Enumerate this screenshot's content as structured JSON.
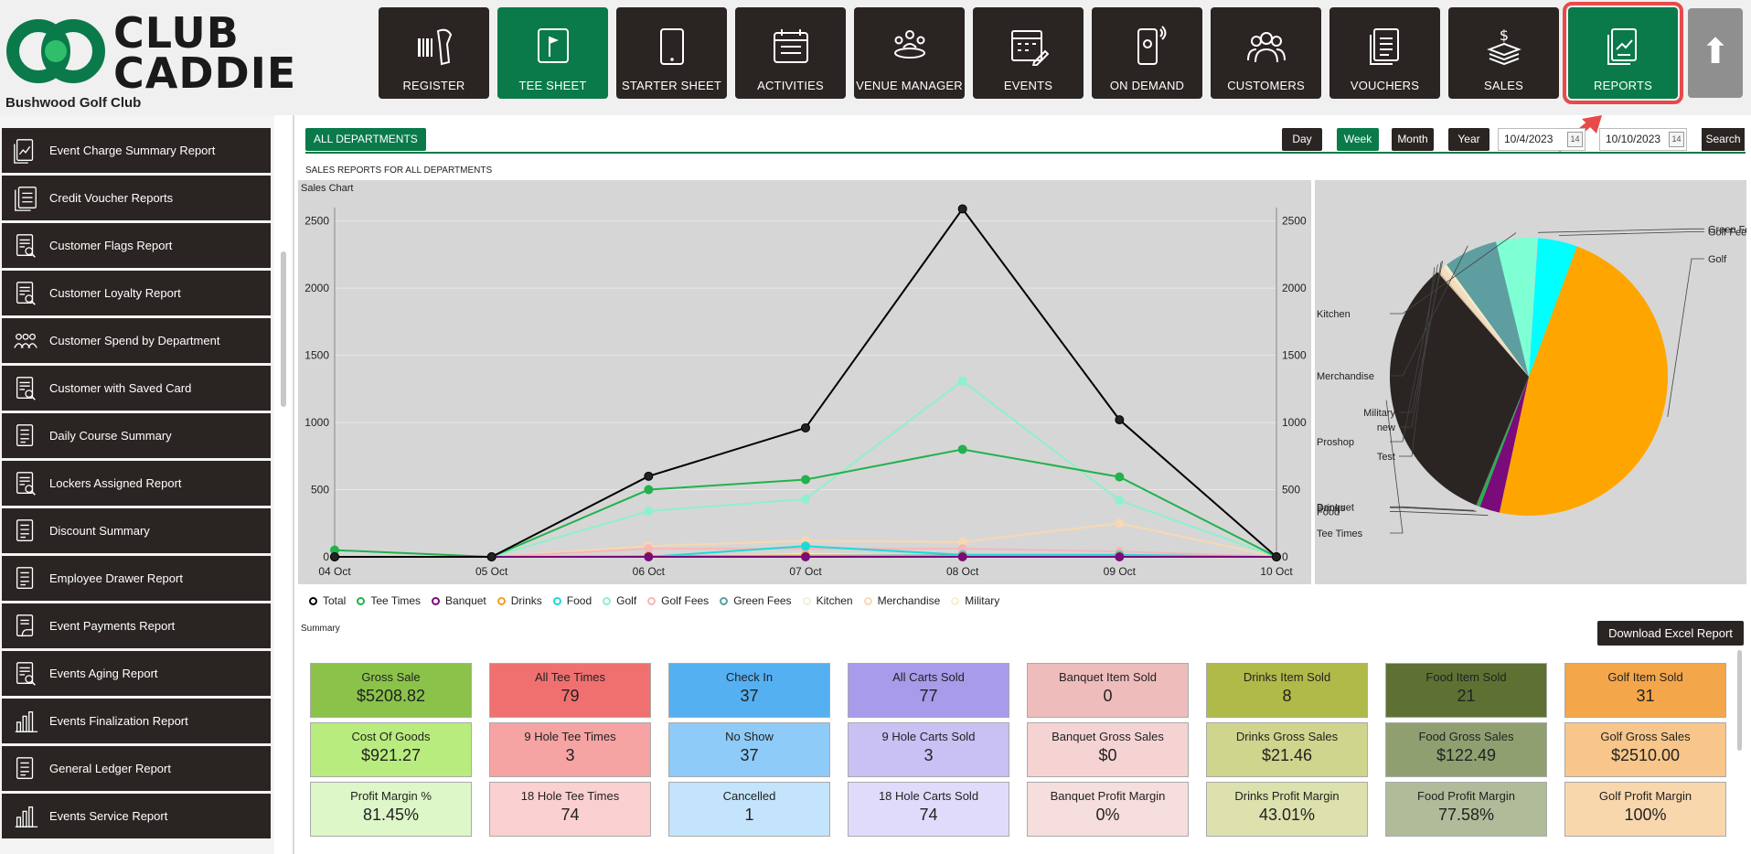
{
  "header": {
    "logo_line1": "CLUB",
    "logo_line2": "CADDIE",
    "club_name": "Bushwood Golf Club",
    "nav": [
      {
        "label": "REGISTER",
        "icon": "scanner-icon"
      },
      {
        "label": "TEE SHEET",
        "icon": "flag-icon"
      },
      {
        "label": "STARTER SHEET",
        "icon": "tablet-icon"
      },
      {
        "label": "ACTIVITIES",
        "icon": "calendar-list-icon"
      },
      {
        "label": "VENUE MANAGER",
        "icon": "meeting-icon"
      },
      {
        "label": "EVENTS",
        "icon": "calendar-edit-icon"
      },
      {
        "label": "ON DEMAND",
        "icon": "phone-icon"
      },
      {
        "label": "CUSTOMERS",
        "icon": "users-icon"
      },
      {
        "label": "VOUCHERS",
        "icon": "document-icon"
      },
      {
        "label": "SALES",
        "icon": "money-icon"
      },
      {
        "label": "REPORTS",
        "icon": "report-icon"
      }
    ],
    "active_nav": "TEE SHEET",
    "highlighted_nav": "REPORTS",
    "up_icon": "arrow-up-icon"
  },
  "sidebar": {
    "items": [
      {
        "label": "Event Charge Summary Report",
        "icon": "chart-doc-icon"
      },
      {
        "label": "Credit Voucher Reports",
        "icon": "doc-stack-icon"
      },
      {
        "label": "Customer Flags Report",
        "icon": "doc-search-icon"
      },
      {
        "label": "Customer Loyalty Report",
        "icon": "doc-search-icon"
      },
      {
        "label": "Customer Spend by Department",
        "icon": "people-icon"
      },
      {
        "label": "Customer with Saved Card",
        "icon": "doc-search-icon"
      },
      {
        "label": "Daily Course Summary",
        "icon": "doc-lines-icon"
      },
      {
        "label": "Lockers Assigned Report",
        "icon": "doc-search-icon"
      },
      {
        "label": "Discount Summary",
        "icon": "doc-lines-icon"
      },
      {
        "label": "Employee Drawer Report",
        "icon": "doc-lines-icon"
      },
      {
        "label": "Event Payments Report",
        "icon": "doc-hand-icon"
      },
      {
        "label": "Events Aging Report",
        "icon": "doc-search-icon"
      },
      {
        "label": "Events Finalization Report",
        "icon": "bar-chart-icon"
      },
      {
        "label": "General Ledger Report",
        "icon": "doc-lines-icon"
      },
      {
        "label": "Events Service Report",
        "icon": "bar-chart-icon"
      }
    ]
  },
  "toolbar": {
    "department_button": "ALL DEPARTMENTS",
    "ranges": [
      "Day",
      "Week",
      "Month",
      "Year"
    ],
    "active_range": "Week",
    "start_date": "10/4/2023",
    "end_date": "10/10/2023",
    "calendar_icon_text": "14",
    "search_label": "Search"
  },
  "report_title": "SALES REPORTS FOR ALL DEPARTMENTS",
  "chart_label": "Sales Chart",
  "colors": {
    "brand_green": "#0a7a4a",
    "dark": "#2a2522",
    "highlight_red": "#e84a4a",
    "chart_bg": "#d6d6d6"
  },
  "chart_data": [
    {
      "type": "line",
      "title": "Sales Chart",
      "x": [
        "04 Oct",
        "05 Oct",
        "06 Oct",
        "07 Oct",
        "08 Oct",
        "09 Oct",
        "10 Oct"
      ],
      "ylim": [
        0,
        2600
      ],
      "yticks": [
        0,
        500,
        1000,
        1500,
        2000,
        2500
      ],
      "series": [
        {
          "name": "Total",
          "color": "#000000",
          "values": [
            0,
            0,
            600,
            960,
            2590,
            1020,
            0
          ]
        },
        {
          "name": "Tee Times",
          "color": "#22b14c",
          "values": [
            50,
            0,
            500,
            575,
            800,
            595,
            0
          ]
        },
        {
          "name": "Banquet",
          "color": "#7b0a7b",
          "values": [
            0,
            0,
            0,
            0,
            0,
            0,
            0
          ]
        },
        {
          "name": "Drinks",
          "color": "#f0a020",
          "values": [
            0,
            0,
            5,
            10,
            5,
            5,
            0
          ]
        },
        {
          "name": "Food",
          "color": "#20d8d8",
          "values": [
            0,
            0,
            0,
            80,
            15,
            15,
            0
          ]
        },
        {
          "name": "Golf",
          "color": "#8ef0cc",
          "values": [
            0,
            0,
            340,
            430,
            1310,
            420,
            0
          ]
        },
        {
          "name": "Golf Fees",
          "color": "#f4b8b8",
          "values": [
            0,
            0,
            60,
            60,
            60,
            40,
            0
          ]
        },
        {
          "name": "Green Fees",
          "color": "#5aa0a0",
          "values": [
            0,
            0,
            0,
            10,
            10,
            0,
            0
          ]
        },
        {
          "name": "Kitchen",
          "color": "#f0f0d8",
          "values": [
            0,
            0,
            0,
            20,
            10,
            5,
            0
          ]
        },
        {
          "name": "Merchandise",
          "color": "#f8d8b0",
          "values": [
            0,
            0,
            80,
            120,
            110,
            250,
            0
          ]
        },
        {
          "name": "Military",
          "color": "#f8f0c8",
          "values": [
            0,
            0,
            0,
            0,
            0,
            0,
            0
          ]
        }
      ]
    },
    {
      "type": "pie",
      "slices": [
        {
          "label": "Golf",
          "value": 2510,
          "color": "#ffa500"
        },
        {
          "label": "Food",
          "value": 122.49,
          "color": "#7b0a7b"
        },
        {
          "label": "Drinks",
          "value": 21.46,
          "color": "#22b14c"
        },
        {
          "label": "Banquet",
          "value": 0,
          "color": "#8a4a8a"
        },
        {
          "label": "Tee Times",
          "value": 1700,
          "color": "#2a2522"
        },
        {
          "label": "Test",
          "value": 10,
          "color": "#d8b898"
        },
        {
          "label": "Proshop",
          "value": 40,
          "color": "#f0dcc0"
        },
        {
          "label": "new",
          "value": 10,
          "color": "#f8e8c8"
        },
        {
          "label": "Military",
          "value": 10,
          "color": "#f8f0c8"
        },
        {
          "label": "Merchandise",
          "value": 330,
          "color": "#5f9ea0"
        },
        {
          "label": "Kitchen",
          "value": 250,
          "color": "#7fffd4"
        },
        {
          "label": "Green Fees",
          "value": 5,
          "color": "#b0e0e0"
        },
        {
          "label": "Golf Fees",
          "value": 240,
          "color": "#00ffff"
        }
      ]
    }
  ],
  "legend_items": [
    {
      "name": "Total",
      "color": "#000000"
    },
    {
      "name": "Tee Times",
      "color": "#22b14c"
    },
    {
      "name": "Banquet",
      "color": "#7b0a7b"
    },
    {
      "name": "Drinks",
      "color": "#f0a020"
    },
    {
      "name": "Food",
      "color": "#20d8d8"
    },
    {
      "name": "Golf",
      "color": "#8ef0cc"
    },
    {
      "name": "Golf Fees",
      "color": "#f4b8b8"
    },
    {
      "name": "Green Fees",
      "color": "#5aa0a0"
    },
    {
      "name": "Kitchen",
      "color": "#f0f0d8"
    },
    {
      "name": "Merchandise",
      "color": "#f8d8b0"
    },
    {
      "name": "Military",
      "color": "#f8f0c8"
    }
  ],
  "summary": {
    "label": "Summary",
    "download_label": "Download Excel Report",
    "columns": [
      {
        "colors": [
          "#8bc34a",
          "#b9ec7e",
          "#ddf7c8"
        ],
        "cards": [
          {
            "title": "Gross Sale",
            "value": "$5208.82"
          },
          {
            "title": "Cost Of Goods",
            "value": "$921.27"
          },
          {
            "title": "Profit Margin %",
            "value": "81.45%"
          }
        ]
      },
      {
        "colors": [
          "#f07070",
          "#f5a3a3",
          "#fbd0d0"
        ],
        "cards": [
          {
            "title": "All Tee Times",
            "value": "79"
          },
          {
            "title": "9 Hole Tee Times",
            "value": "3"
          },
          {
            "title": "18 Hole Tee Times",
            "value": "74"
          }
        ]
      },
      {
        "colors": [
          "#55b0f2",
          "#8ecbf8",
          "#c4e4fb"
        ],
        "cards": [
          {
            "title": "Check In",
            "value": "37"
          },
          {
            "title": "No Show",
            "value": "37"
          },
          {
            "title": "Cancelled",
            "value": "1"
          }
        ]
      },
      {
        "colors": [
          "#a89bea",
          "#c9c0f4",
          "#e0dbfa"
        ],
        "cards": [
          {
            "title": "All Carts Sold",
            "value": "77"
          },
          {
            "title": "9 Hole Carts Sold",
            "value": "3"
          },
          {
            "title": "18 Hole Carts Sold",
            "value": "74"
          }
        ]
      },
      {
        "colors": [
          "#efbcbc",
          "#f5d3d3",
          "#f7dede"
        ],
        "cards": [
          {
            "title": "Banquet Item Sold",
            "value": "0"
          },
          {
            "title": "Banquet Gross Sales",
            "value": "$0"
          },
          {
            "title": "Banquet Profit Margin",
            "value": "0%"
          }
        ]
      },
      {
        "colors": [
          "#b0ba48",
          "#cfd58c",
          "#dde1ad"
        ],
        "cards": [
          {
            "title": "Drinks Item Sold",
            "value": "8"
          },
          {
            "title": "Drinks Gross Sales",
            "value": "$21.46"
          },
          {
            "title": "Drinks Profit Margin",
            "value": "43.01%"
          }
        ]
      },
      {
        "colors": [
          "#5e7132",
          "#909f70",
          "#afbb99"
        ],
        "cards": [
          {
            "title": "Food Item Sold",
            "value": "21"
          },
          {
            "title": "Food Gross Sales",
            "value": "$122.49"
          },
          {
            "title": "Food Profit Margin",
            "value": "77.58%"
          }
        ]
      },
      {
        "colors": [
          "#f4a64a",
          "#f8c68a",
          "#f9d7ad"
        ],
        "cards": [
          {
            "title": "Golf Item Sold",
            "value": "31"
          },
          {
            "title": "Golf Gross Sales",
            "value": "$2510.00"
          },
          {
            "title": "Golf Profit Margin",
            "value": "100%"
          }
        ]
      }
    ]
  }
}
